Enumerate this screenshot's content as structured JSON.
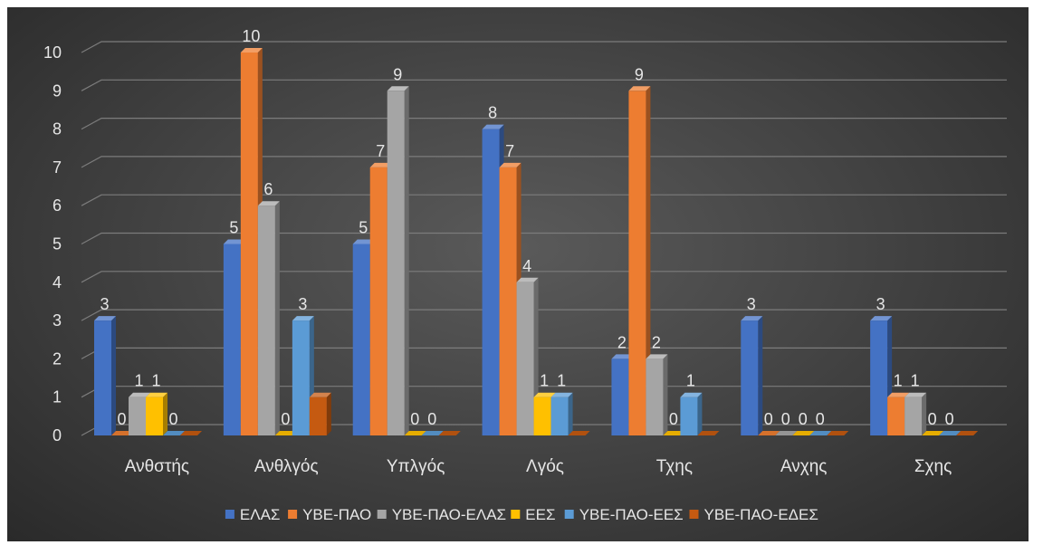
{
  "chart_data": {
    "type": "bar",
    "style": "3d-clustered-column",
    "background": "dark",
    "categories": [
      "Ανθστής",
      "Ανθλγός",
      "Υπλγός",
      "Λγός",
      "Τχης",
      "Ανχης",
      "Σχης"
    ],
    "series": [
      {
        "name": "ΕΛΑΣ",
        "color": "#4472c4",
        "values": [
          3,
          5,
          5,
          8,
          2,
          3,
          3
        ]
      },
      {
        "name": "ΥΒΕ-ΠΑΟ",
        "color": "#ed7d31",
        "values": [
          0,
          10,
          7,
          7,
          9,
          0,
          1
        ]
      },
      {
        "name": "ΥΒΕ-ΠΑΟ-ΕΛΑΣ",
        "color": "#a5a5a5",
        "values": [
          1,
          6,
          9,
          4,
          2,
          0,
          1
        ]
      },
      {
        "name": "ΕΕΣ",
        "color": "#ffc000",
        "values": [
          1,
          0,
          0,
          1,
          0,
          0,
          0
        ]
      },
      {
        "name": "ΥΒΕ-ΠΑΟ-ΕΕΣ",
        "color": "#5b9bd5",
        "values": [
          0,
          3,
          0,
          1,
          1,
          0,
          0
        ]
      },
      {
        "name": "ΥΒΕ-ΠΑΟ-ΕΔΕΣ",
        "color": "#c55a11",
        "values": [
          0,
          1,
          0,
          0,
          0,
          0,
          0
        ]
      }
    ],
    "labels": [
      [
        "3",
        "0",
        "1",
        "1",
        "0",
        null
      ],
      [
        "5",
        "10",
        "6",
        "0",
        "3",
        null
      ],
      [
        "5",
        "7",
        "9",
        "0",
        "0",
        null
      ],
      [
        "8",
        "7",
        "4",
        "1",
        "1",
        null
      ],
      [
        "2",
        "9",
        "2",
        "0",
        "1",
        null
      ],
      [
        "3",
        "0",
        "0",
        "0",
        "0",
        null
      ],
      [
        "3",
        "1",
        "1",
        "0",
        "0",
        null
      ]
    ],
    "yticks": [
      "0",
      "1",
      "2",
      "3",
      "4",
      "5",
      "6",
      "7",
      "8",
      "9",
      "10"
    ],
    "ylim": [
      0,
      10
    ],
    "grid": true,
    "legend_position": "bottom",
    "title": "",
    "xlabel": "",
    "ylabel": ""
  }
}
